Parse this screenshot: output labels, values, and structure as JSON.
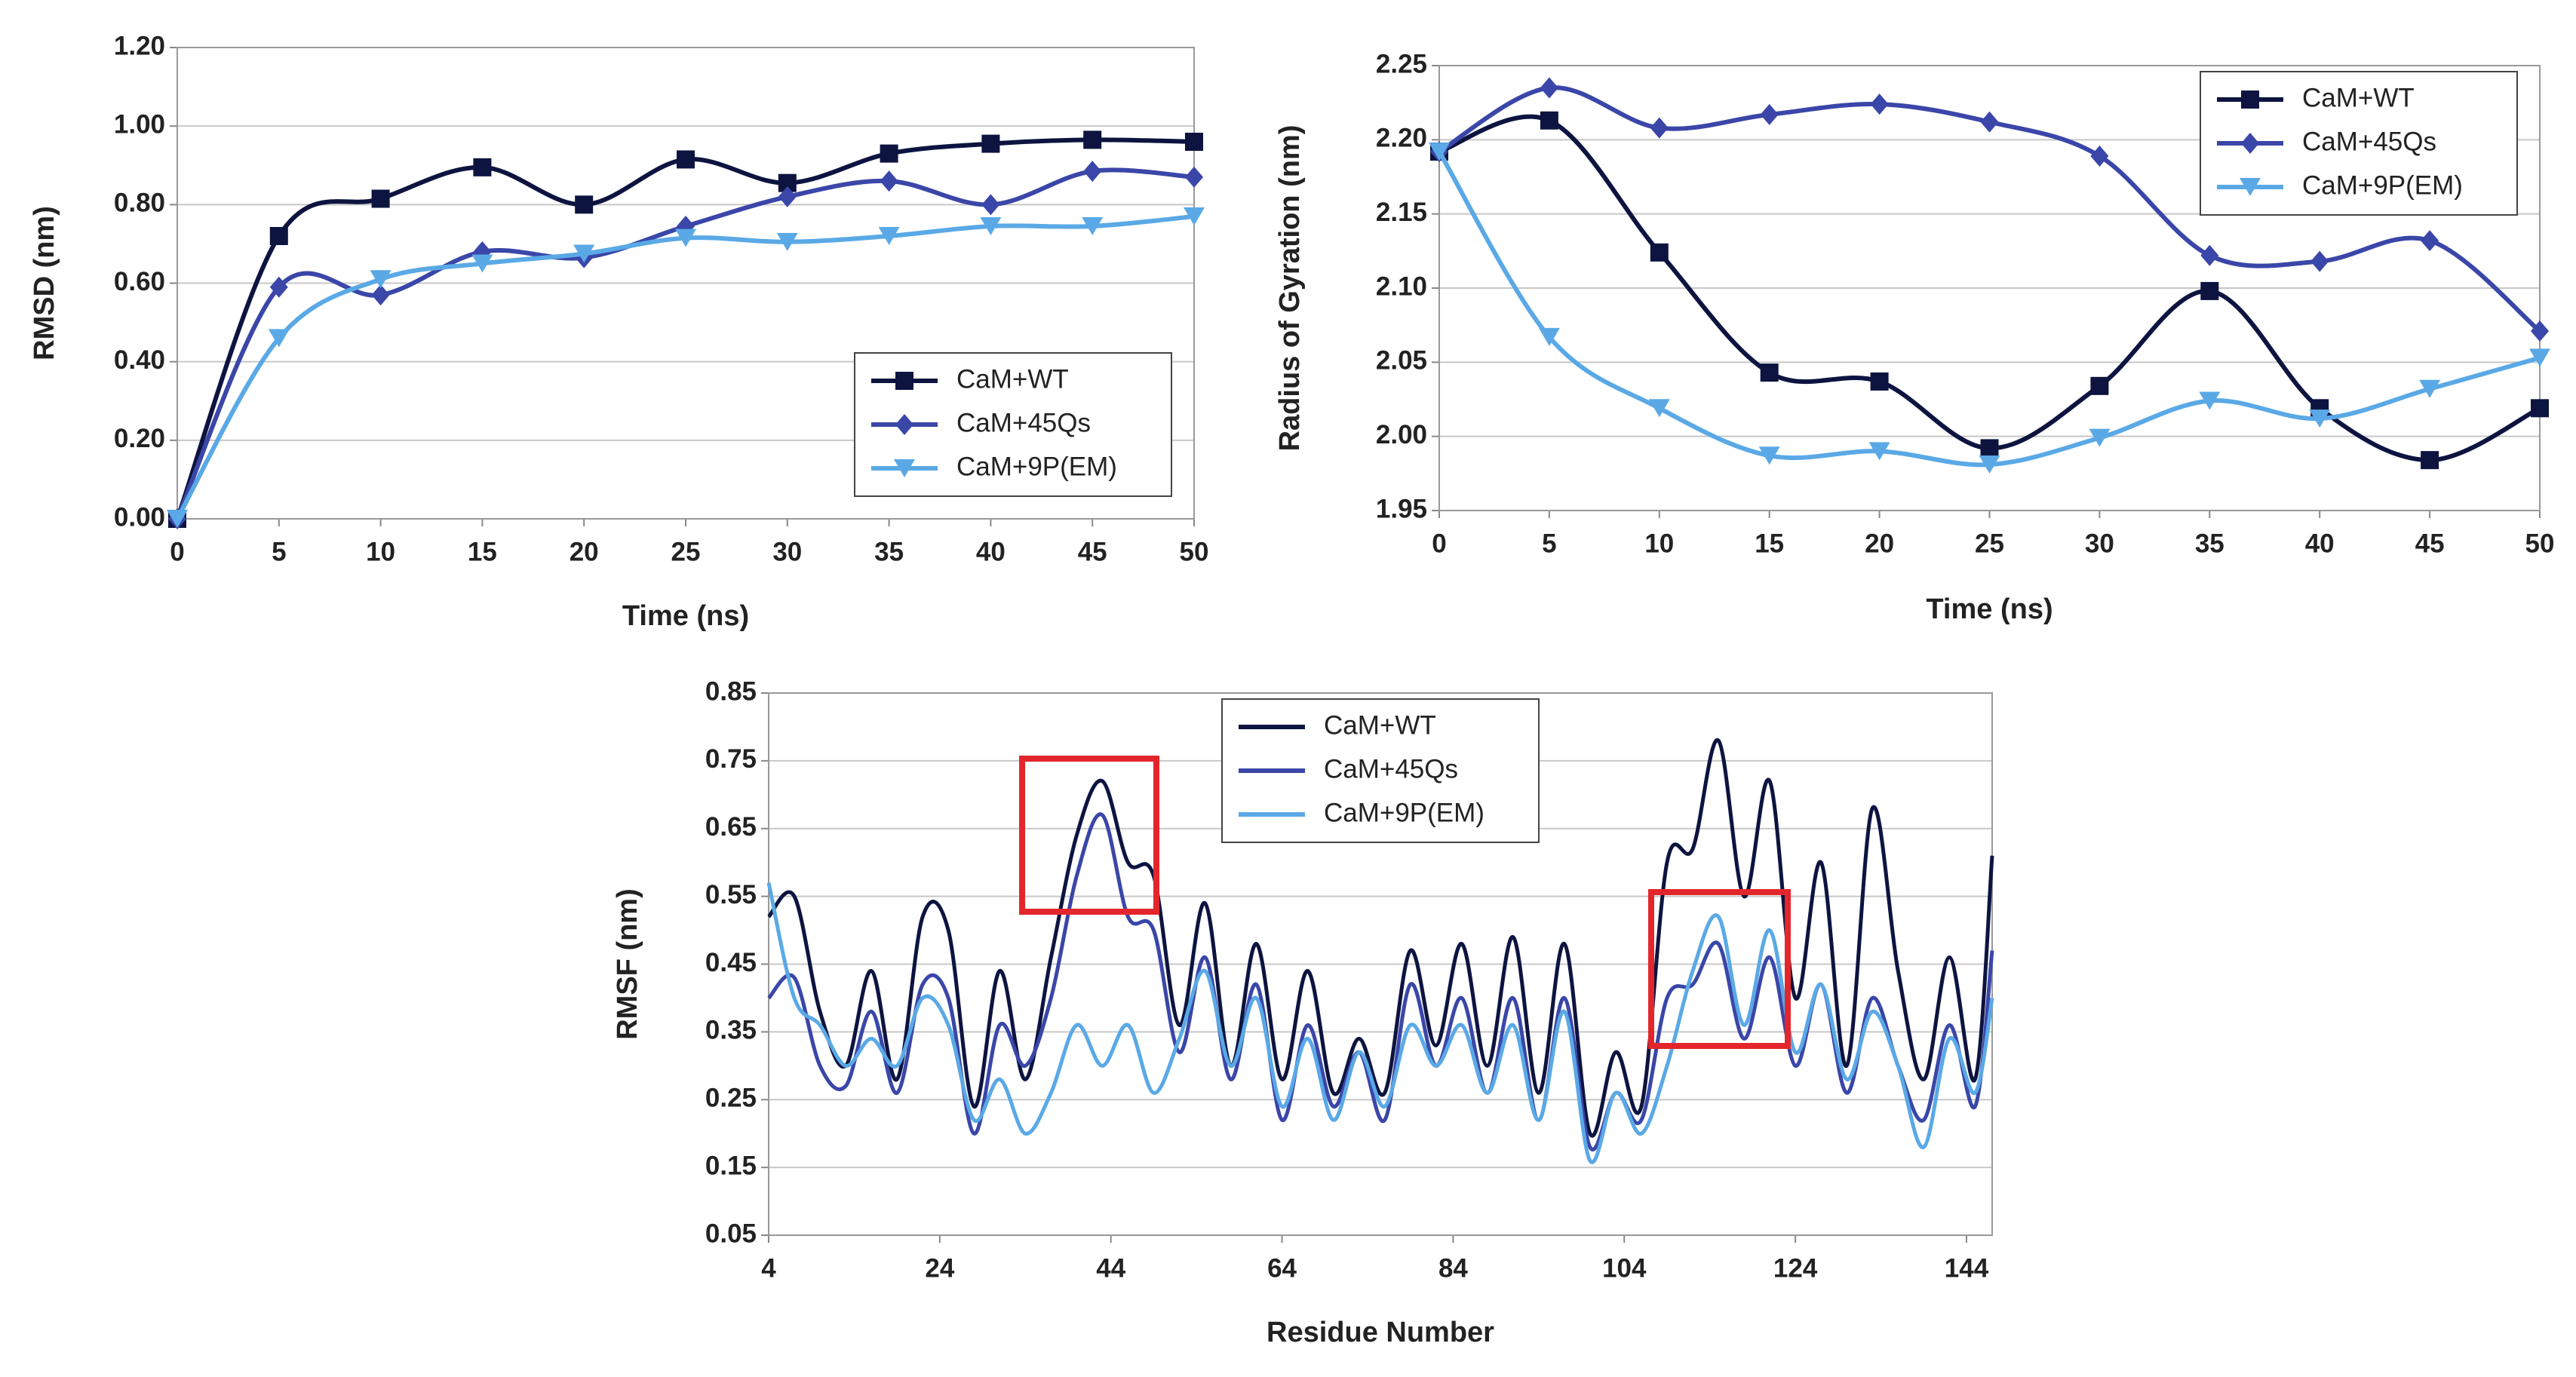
{
  "chart_data": [
    {
      "type": "line",
      "x_label": "Time (ns)",
      "y_label": "RMSD (nm)",
      "x": [
        0,
        5,
        10,
        15,
        20,
        25,
        30,
        35,
        40,
        45,
        50
      ],
      "xlim": [
        0,
        50
      ],
      "xticks": [
        0,
        5,
        10,
        15,
        20,
        25,
        30,
        35,
        40,
        45,
        50
      ],
      "ylim": [
        0,
        1.2
      ],
      "yticks": [
        {
          "value": 0,
          "label": "0.00"
        },
        {
          "value": 0.2,
          "label": "0.20"
        },
        {
          "value": 0.4,
          "label": "0.40"
        },
        {
          "value": 0.6,
          "label": "0.60"
        },
        {
          "value": 0.8,
          "label": "0.80"
        },
        {
          "value": 1,
          "label": "1.00"
        },
        {
          "value": 1.2,
          "label": "1.20"
        }
      ],
      "grid": true,
      "legend": "lower right",
      "series": [
        {
          "name": "CaM+WT",
          "color": "#0d1440",
          "marker": "square",
          "values": [
            0,
            0.72,
            0.815,
            0.895,
            0.8,
            0.915,
            0.855,
            0.93,
            0.955,
            0.965,
            0.96
          ]
        },
        {
          "name": "CaM+45Qs",
          "color": "#3a46a8",
          "marker": "diamond",
          "values": [
            0,
            0.59,
            0.57,
            0.68,
            0.665,
            0.745,
            0.82,
            0.86,
            0.8,
            0.885,
            0.87
          ]
        },
        {
          "name": "CaM+9P(EM)",
          "color": "#5aa9e6",
          "marker": "triangle-down",
          "values": [
            0,
            0.46,
            0.61,
            0.65,
            0.675,
            0.715,
            0.705,
            0.72,
            0.745,
            0.745,
            0.77
          ]
        }
      ]
    },
    {
      "type": "line",
      "x_label": "Time (ns)",
      "y_label": "Radius of Gyration (nm)",
      "x": [
        0,
        5,
        10,
        15,
        20,
        25,
        30,
        35,
        40,
        45,
        50
      ],
      "xlim": [
        0,
        50
      ],
      "xticks": [
        0,
        5,
        10,
        15,
        20,
        25,
        30,
        35,
        40,
        45,
        50
      ],
      "ylim": [
        1.95,
        2.25
      ],
      "yticks": [
        1.95,
        {
          "value": 2,
          "label": "2.00"
        },
        2.05,
        {
          "value": 2.1,
          "label": "2.10"
        },
        2.15,
        {
          "value": 2.2,
          "label": "2.20"
        },
        2.25
      ],
      "grid": true,
      "legend": "upper right",
      "series": [
        {
          "name": "CaM+WT",
          "color": "#0d1440",
          "marker": "square",
          "values": [
            2.192,
            2.213,
            2.124,
            2.043,
            2.037,
            1.992,
            2.034,
            2.098,
            2.019,
            1.984,
            2.019
          ]
        },
        {
          "name": "CaM+45Qs",
          "color": "#3a46a8",
          "marker": "diamond",
          "values": [
            2.192,
            2.235,
            2.208,
            2.217,
            2.224,
            2.212,
            2.189,
            2.122,
            2.118,
            2.132,
            2.071
          ]
        },
        {
          "name": "CaM+9P(EM)",
          "color": "#5aa9e6",
          "marker": "triangle-down",
          "values": [
            2.192,
            2.067,
            2.019,
            1.987,
            1.99,
            1.981,
            1.999,
            2.024,
            2.012,
            2.032,
            2.053
          ]
        }
      ]
    },
    {
      "type": "line",
      "x_label": "Residue Number",
      "y_label": "RMSF (nm)",
      "x": [
        4,
        7,
        10,
        13,
        16,
        19,
        22,
        25,
        28,
        31,
        34,
        37,
        40,
        43,
        46,
        49,
        52,
        55,
        58,
        61,
        64,
        67,
        70,
        73,
        76,
        79,
        82,
        85,
        88,
        91,
        94,
        97,
        100,
        103,
        106,
        109,
        112,
        115,
        118,
        121,
        124,
        127,
        130,
        133,
        136,
        139,
        142,
        145,
        147
      ],
      "xlim": [
        4,
        147
      ],
      "xticks": [
        4,
        24,
        44,
        64,
        84,
        104,
        124,
        144
      ],
      "ylim": [
        0.05,
        0.85
      ],
      "yticks": [
        0.05,
        0.15,
        0.25,
        0.35,
        0.45,
        0.55,
        0.65,
        0.75,
        0.85
      ],
      "grid": true,
      "legend": "upper center",
      "series": [
        {
          "name": "CaM+WT",
          "color": "#0d1440",
          "marker": "none",
          "values": [
            0.52,
            0.55,
            0.38,
            0.3,
            0.44,
            0.28,
            0.52,
            0.5,
            0.24,
            0.44,
            0.28,
            0.46,
            0.64,
            0.72,
            0.6,
            0.58,
            0.36,
            0.54,
            0.3,
            0.48,
            0.28,
            0.44,
            0.26,
            0.34,
            0.26,
            0.47,
            0.33,
            0.48,
            0.3,
            0.49,
            0.26,
            0.48,
            0.2,
            0.32,
            0.24,
            0.6,
            0.62,
            0.78,
            0.55,
            0.72,
            0.4,
            0.6,
            0.3,
            0.68,
            0.44,
            0.28,
            0.46,
            0.28,
            0.61
          ]
        },
        {
          "name": "CaM+45Qs",
          "color": "#3a46a8",
          "marker": "none",
          "values": [
            0.4,
            0.43,
            0.3,
            0.27,
            0.38,
            0.26,
            0.42,
            0.4,
            0.2,
            0.36,
            0.3,
            0.4,
            0.58,
            0.67,
            0.52,
            0.5,
            0.32,
            0.46,
            0.28,
            0.42,
            0.22,
            0.36,
            0.24,
            0.32,
            0.22,
            0.42,
            0.3,
            0.4,
            0.26,
            0.4,
            0.22,
            0.4,
            0.18,
            0.26,
            0.22,
            0.4,
            0.42,
            0.48,
            0.34,
            0.46,
            0.3,
            0.42,
            0.26,
            0.4,
            0.3,
            0.22,
            0.36,
            0.24,
            0.47
          ]
        },
        {
          "name": "CaM+9P(EM)",
          "color": "#5aa9e6",
          "marker": "none",
          "values": [
            0.57,
            0.4,
            0.36,
            0.3,
            0.34,
            0.3,
            0.4,
            0.36,
            0.22,
            0.28,
            0.2,
            0.26,
            0.36,
            0.3,
            0.36,
            0.26,
            0.34,
            0.44,
            0.3,
            0.4,
            0.24,
            0.34,
            0.22,
            0.32,
            0.24,
            0.36,
            0.3,
            0.36,
            0.26,
            0.36,
            0.22,
            0.38,
            0.16,
            0.26,
            0.2,
            0.3,
            0.44,
            0.52,
            0.36,
            0.5,
            0.32,
            0.42,
            0.28,
            0.38,
            0.3,
            0.18,
            0.34,
            0.26,
            0.4
          ]
        }
      ]
    }
  ]
}
